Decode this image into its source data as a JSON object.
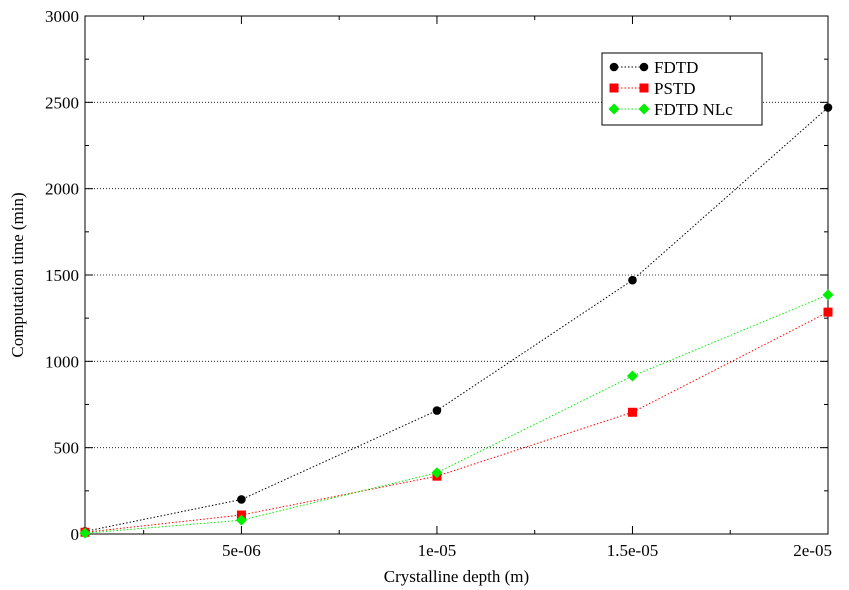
{
  "chart_data": {
    "type": "line",
    "title": "",
    "xlabel": "Crystalline depth (m)",
    "ylabel": "Computation time (min)",
    "xlim": [
      1e-06,
      2e-05
    ],
    "ylim": [
      0,
      3000
    ],
    "xticks": [
      5e-06,
      1e-05,
      1.5e-05,
      2e-05
    ],
    "xtick_labels": [
      "5e-06",
      "1e-05",
      "1.5e-05",
      "2e-05"
    ],
    "yticks": [
      0,
      500,
      1000,
      1500,
      2000,
      2500,
      3000
    ],
    "ytick_labels": [
      "0",
      "500",
      "1000",
      "1500",
      "2000",
      "2500",
      "3000"
    ],
    "grid": "horizontal dotted",
    "legend_position": "top-right",
    "x": [
      1e-06,
      5e-06,
      1e-05,
      1.5e-05,
      2e-05
    ],
    "series": [
      {
        "name": "FDTD",
        "color": "#000000",
        "marker": "circle",
        "values": [
          15,
          200,
          715,
          1470,
          2470
        ]
      },
      {
        "name": "PSTD",
        "color": "#ff0000",
        "marker": "square",
        "values": [
          10,
          110,
          335,
          705,
          1285
        ]
      },
      {
        "name": "FDTD NLc",
        "color": "#00ee00",
        "marker": "diamond",
        "values": [
          5,
          80,
          355,
          915,
          1385
        ]
      }
    ]
  }
}
